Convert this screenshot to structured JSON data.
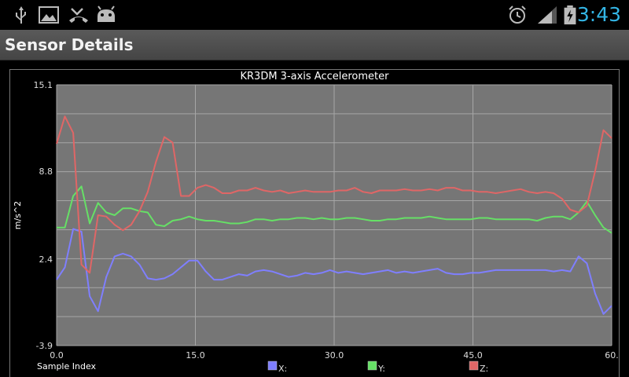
{
  "status_bar": {
    "left_icons": [
      "usb-icon",
      "image-icon",
      "missed-call-icon",
      "android-debug-icon"
    ],
    "right_icons": [
      "alarm-icon",
      "signal-icon",
      "battery-charging-icon"
    ],
    "time": "3:43",
    "time_color": "#33b5e5"
  },
  "action_bar": {
    "title": "Sensor Details"
  },
  "chart_data": {
    "type": "line",
    "title": "KR3DM 3-axis Accelerometer",
    "xlabel": "Sample Index",
    "ylabel": "m/s^2",
    "xlim": [
      0,
      60
    ],
    "ylim": [
      -3.9,
      15.1
    ],
    "x_ticks": [
      "0.0",
      "15.0",
      "30.0",
      "45.0",
      "60."
    ],
    "y_ticks": [
      {
        "v": 15.1,
        "label": "15.1"
      },
      {
        "v": 8.8,
        "label": "8.8"
      },
      {
        "v": 2.4,
        "label": "2.4"
      },
      {
        "v": -3.9,
        "label": "-3.9"
      }
    ],
    "grid": true,
    "legend_placement": "bottom",
    "series": [
      {
        "name": "X:",
        "color": "#7f7fff",
        "values": [
          0.9,
          1.8,
          4.6,
          4.4,
          -0.3,
          -1.4,
          1.1,
          2.6,
          2.8,
          2.6,
          2.0,
          1.0,
          0.9,
          1.0,
          1.3,
          1.8,
          2.3,
          2.3,
          1.5,
          0.9,
          0.9,
          1.1,
          1.3,
          1.2,
          1.5,
          1.6,
          1.5,
          1.3,
          1.1,
          1.2,
          1.4,
          1.3,
          1.4,
          1.6,
          1.4,
          1.5,
          1.4,
          1.3,
          1.4,
          1.5,
          1.6,
          1.4,
          1.5,
          1.4,
          1.5,
          1.6,
          1.7,
          1.4,
          1.3,
          1.3,
          1.4,
          1.4,
          1.5,
          1.6,
          1.6,
          1.6,
          1.6,
          1.6,
          1.6,
          1.6,
          1.5,
          1.6,
          1.5,
          2.6,
          2.1,
          -0.1,
          -1.6,
          -1.0
        ]
      },
      {
        "name": "Y:",
        "color": "#66e066",
        "values": [
          4.7,
          4.7,
          7.0,
          7.7,
          5.0,
          6.5,
          5.8,
          5.6,
          6.1,
          6.1,
          5.9,
          5.8,
          4.9,
          4.8,
          5.2,
          5.3,
          5.5,
          5.3,
          5.2,
          5.2,
          5.1,
          5.0,
          5.0,
          5.1,
          5.3,
          5.3,
          5.2,
          5.3,
          5.3,
          5.4,
          5.4,
          5.3,
          5.4,
          5.3,
          5.3,
          5.4,
          5.4,
          5.3,
          5.2,
          5.2,
          5.3,
          5.3,
          5.4,
          5.4,
          5.4,
          5.5,
          5.4,
          5.3,
          5.3,
          5.3,
          5.3,
          5.4,
          5.4,
          5.3,
          5.3,
          5.3,
          5.3,
          5.3,
          5.2,
          5.4,
          5.5,
          5.5,
          5.3,
          5.8,
          6.6,
          5.6,
          4.7,
          4.3
        ]
      },
      {
        "name": "Z:",
        "color": "#e06666",
        "values": [
          10.8,
          12.8,
          11.6,
          2.0,
          1.4,
          5.6,
          5.5,
          4.9,
          4.5,
          4.9,
          5.9,
          7.3,
          9.5,
          11.3,
          10.9,
          7.0,
          7.0,
          7.6,
          7.8,
          7.6,
          7.2,
          7.2,
          7.4,
          7.4,
          7.6,
          7.4,
          7.3,
          7.4,
          7.2,
          7.3,
          7.4,
          7.3,
          7.3,
          7.3,
          7.4,
          7.4,
          7.6,
          7.3,
          7.2,
          7.4,
          7.4,
          7.4,
          7.5,
          7.4,
          7.4,
          7.5,
          7.4,
          7.6,
          7.6,
          7.4,
          7.4,
          7.3,
          7.3,
          7.2,
          7.3,
          7.4,
          7.5,
          7.3,
          7.2,
          7.3,
          7.2,
          6.8,
          6.0,
          5.8,
          6.3,
          8.8,
          11.8,
          11.2
        ]
      }
    ]
  }
}
